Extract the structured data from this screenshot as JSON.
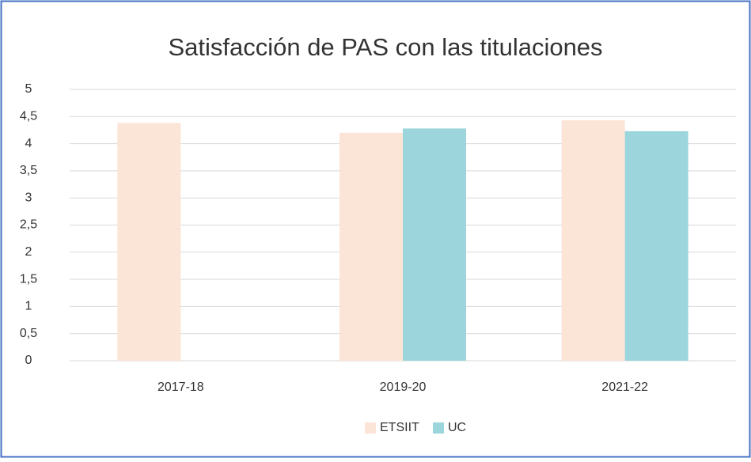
{
  "chart_data": {
    "type": "bar",
    "title": "Satisfacción de PAS con las titulaciones",
    "categories": [
      "2017-18",
      "2019-20",
      "2021-22"
    ],
    "series": [
      {
        "name": "ETSIIT",
        "color": "#fbe5d6",
        "values": [
          4.38,
          4.2,
          4.43
        ]
      },
      {
        "name": "UC",
        "color": "#9dd5dc",
        "values": [
          null,
          4.28,
          4.23
        ]
      }
    ],
    "ylim": [
      0,
      5
    ],
    "yticks": [
      0,
      {
        "value": 0.5,
        "label": "0,5"
      },
      1,
      {
        "value": 1.5,
        "label": "1,5"
      },
      2,
      {
        "value": 2.5,
        "label": "2,5"
      },
      3,
      {
        "value": 3.5,
        "label": "3,5"
      },
      4,
      {
        "value": 4.5,
        "label": "4,5"
      },
      5
    ],
    "grid": true,
    "legend": "bottom"
  }
}
